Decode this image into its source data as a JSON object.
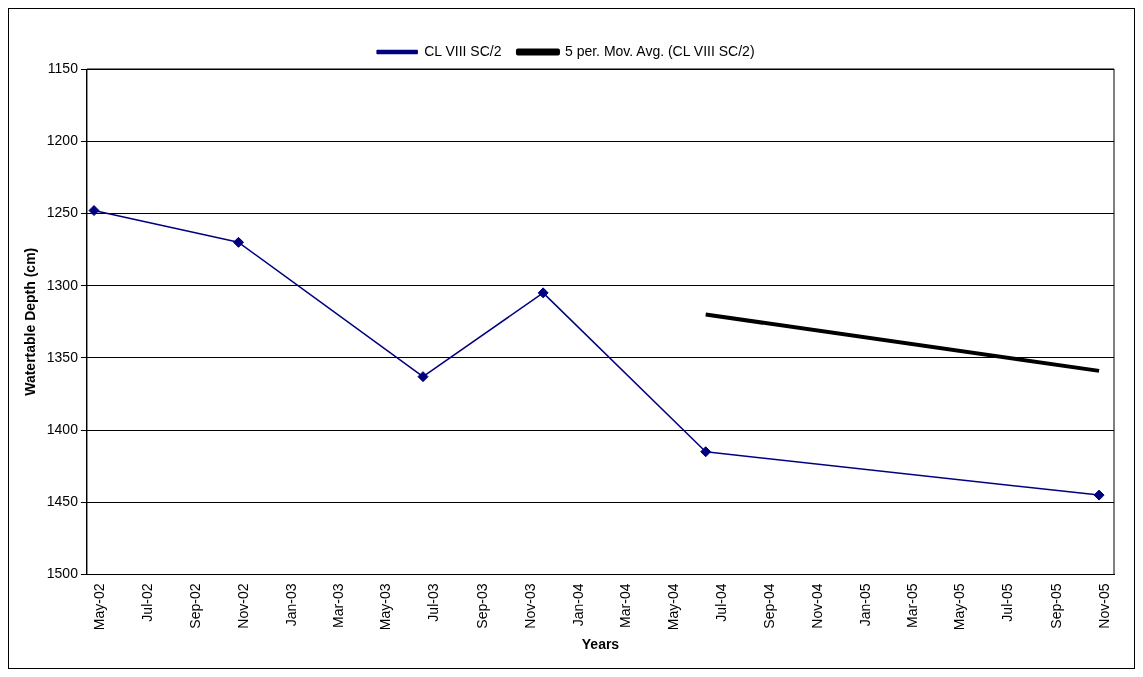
{
  "chart_data": {
    "type": "line",
    "xlabel": "Years",
    "ylabel": "Watertable Depth (cm)",
    "xlim": [
      "2002-04-22",
      "2005-11-20"
    ],
    "xticks": [
      {
        "value": "2002-05-01",
        "label": "May-02"
      },
      {
        "value": "2002-07-01",
        "label": "Jul-02"
      },
      {
        "value": "2002-09-01",
        "label": "Sep-02"
      },
      {
        "value": "2002-11-01",
        "label": "Nov-02"
      },
      {
        "value": "2003-01-01",
        "label": "Jan-03"
      },
      {
        "value": "2003-03-01",
        "label": "Mar-03"
      },
      {
        "value": "2003-05-01",
        "label": "May-03"
      },
      {
        "value": "2003-07-01",
        "label": "Jul-03"
      },
      {
        "value": "2003-09-01",
        "label": "Sep-03"
      },
      {
        "value": "2003-11-01",
        "label": "Nov-03"
      },
      {
        "value": "2004-01-01",
        "label": "Jan-04"
      },
      {
        "value": "2004-03-01",
        "label": "Mar-04"
      },
      {
        "value": "2004-05-01",
        "label": "May-04"
      },
      {
        "value": "2004-07-01",
        "label": "Jul-04"
      },
      {
        "value": "2004-09-01",
        "label": "Sep-04"
      },
      {
        "value": "2004-11-01",
        "label": "Nov-04"
      },
      {
        "value": "2005-01-01",
        "label": "Jan-05"
      },
      {
        "value": "2005-03-01",
        "label": "Mar-05"
      },
      {
        "value": "2005-05-01",
        "label": "May-05"
      },
      {
        "value": "2005-07-01",
        "label": "Jul-05"
      },
      {
        "value": "2005-09-01",
        "label": "Sep-05"
      },
      {
        "value": "2005-11-01",
        "label": "Nov-05"
      }
    ],
    "ylim": [
      1500,
      1150
    ],
    "yticks": [
      1150,
      1200,
      1250,
      1300,
      1350,
      1400,
      1450,
      1500
    ],
    "grid": "y",
    "legend": "top",
    "series": [
      {
        "name": "CL VIII SC/2",
        "color": "#000080",
        "marker": "diamond",
        "x": [
          "2002-05-01",
          "2002-11-01",
          "2003-06-24",
          "2003-11-24",
          "2004-06-18",
          "2005-11-01"
        ],
        "values": [
          1248,
          1270,
          1363,
          1305,
          1415,
          1445
        ]
      },
      {
        "name": "5 per. Mov. Avg. (CL VIII SC/2)",
        "color": "#000000",
        "marker": "none",
        "x": [
          "2004-06-18",
          "2005-11-01"
        ],
        "values": [
          1320,
          1359
        ]
      }
    ]
  }
}
